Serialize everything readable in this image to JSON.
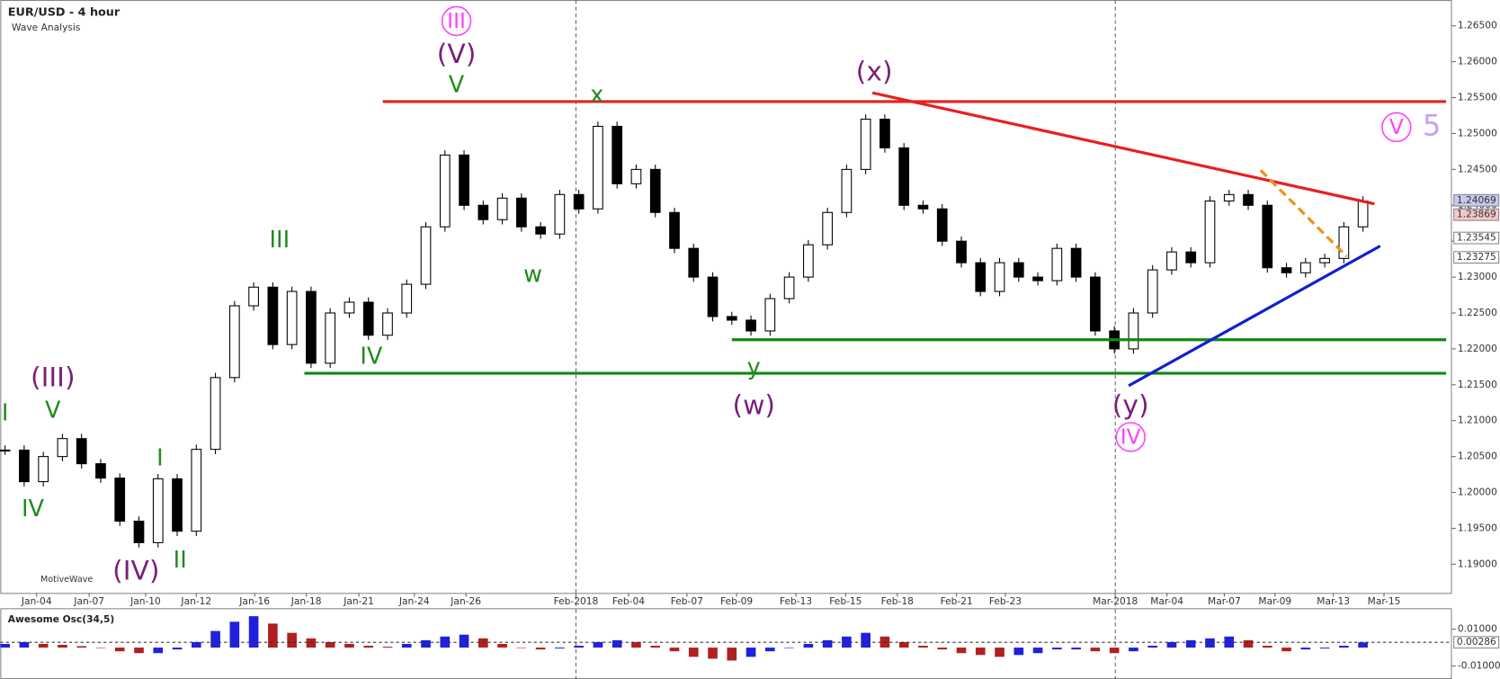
{
  "title": "EUR/USD - 4 hour",
  "subtitle": "Wave Analysis",
  "watermark": "MotiveWave",
  "chart_data": {
    "type": "candlestick",
    "close": [
      1.2059,
      1.2015,
      1.205,
      1.2075,
      1.204,
      1.202,
      1.196,
      1.193,
      1.2019,
      1.1946,
      1.206,
      1.216,
      1.226,
      1.2286,
      1.2206,
      1.228,
      1.218,
      1.225,
      1.2265,
      1.2219,
      1.225,
      1.229,
      1.237,
      1.247,
      1.24,
      1.238,
      1.241,
      1.237,
      1.236,
      1.2415,
      1.2395,
      1.251,
      1.243,
      1.245,
      1.239,
      1.234,
      1.23,
      1.2245,
      1.224,
      1.2225,
      1.227,
      1.23,
      1.2345,
      1.239,
      1.245,
      1.252,
      1.248,
      1.24,
      1.2395,
      1.235,
      1.232,
      1.228,
      1.232,
      1.23,
      1.2295,
      1.234,
      1.23,
      1.2225,
      1.22,
      1.225,
      1.231,
      1.2335,
      1.232,
      1.2406,
      1.2415,
      1.24,
      1.2313,
      1.2306,
      1.232,
      1.2326,
      1.237,
      1.2406
    ],
    "up_color": "#ffffff",
    "down_color": "#000000",
    "xlim": [
      -0.25,
      75.65
    ],
    "ylim": [
      1.186,
      1.2686
    ],
    "yticks": [
      {
        "value": 1.19,
        "label": "1.19000"
      },
      {
        "value": 1.195,
        "label": "1.19500"
      },
      {
        "value": 1.2,
        "label": "1.20000"
      },
      {
        "value": 1.205,
        "label": "1.20500"
      },
      {
        "value": 1.21,
        "label": "1.21000"
      },
      {
        "value": 1.215,
        "label": "1.21500"
      },
      {
        "value": 1.22,
        "label": "1.22000"
      },
      {
        "value": 1.225,
        "label": "1.22500"
      },
      {
        "value": 1.23,
        "label": "1.23000"
      },
      {
        "value": 1.235,
        "label": "1.23500"
      },
      {
        "value": 1.24,
        "label": "1.24000"
      },
      {
        "value": 1.245,
        "label": "1.24500"
      },
      {
        "value": 1.25,
        "label": "1.25000"
      },
      {
        "value": 1.255,
        "label": "1.25500"
      },
      {
        "value": 1.26,
        "label": "1.26000"
      },
      {
        "value": 1.265,
        "label": "1.26500"
      }
    ],
    "xticks": [
      {
        "value": 1.65,
        "label": "Jan-04"
      },
      {
        "value": 4.4,
        "label": "Jan-07"
      },
      {
        "value": 7.35,
        "label": "Jan-10"
      },
      {
        "value": 10,
        "label": "Jan-12"
      },
      {
        "value": 13.05,
        "label": "Jan-16"
      },
      {
        "value": 15.75,
        "label": "Jan-18"
      },
      {
        "value": 18.5,
        "label": "Jan-21"
      },
      {
        "value": 21.4,
        "label": "Jan-24"
      },
      {
        "value": 24.1,
        "label": "Jan-26"
      },
      {
        "value": 29.85,
        "label": "Feb-2018"
      },
      {
        "value": 32.6,
        "label": "Feb-04"
      },
      {
        "value": 35.65,
        "label": "Feb-07"
      },
      {
        "value": 38.25,
        "label": "Feb-09"
      },
      {
        "value": 41.35,
        "label": "Feb-13"
      },
      {
        "value": 43.95,
        "label": "Feb-15"
      },
      {
        "value": 46.65,
        "label": "Feb-18"
      },
      {
        "value": 49.75,
        "label": "Feb-21"
      },
      {
        "value": 52.3,
        "label": "Feb-23"
      },
      {
        "value": 58.05,
        "label": "Mar-2018"
      },
      {
        "value": 60.75,
        "label": "Mar-04"
      },
      {
        "value": 63.75,
        "label": "Mar-07"
      },
      {
        "value": 66.4,
        "label": "Mar-09"
      },
      {
        "value": 69.45,
        "label": "Mar-13"
      },
      {
        "value": 72.1,
        "label": "Mar-15"
      }
    ],
    "separators": [
      9,
      18
    ],
    "lines": [
      {
        "from": [
          19.75,
          1.25445
        ],
        "to": [
          75.35,
          1.25445
        ],
        "color": "#e82020",
        "width": 3
      },
      {
        "from": [
          38,
          1.22127
        ],
        "to": [
          75.35,
          1.22127
        ],
        "color": "#108a10",
        "width": 3
      },
      {
        "from": [
          15.65,
          1.2166
        ],
        "to": [
          75.35,
          1.2166
        ],
        "color": "#108a10",
        "width": 3
      },
      {
        "from": [
          45.35,
          1.25567
        ],
        "to": [
          71.6,
          1.2402
        ],
        "color": "#e82020",
        "width": 3
      },
      {
        "from": [
          58.75,
          1.21487
        ],
        "to": [
          71.9,
          1.23433
        ],
        "color": "#1020d0",
        "width": 3
      },
      {
        "from": [
          65.65,
          1.24487
        ],
        "to": [
          70.15,
          1.23287
        ],
        "color": "#f39019",
        "width": 3,
        "dash": true
      }
    ],
    "price_markers": [
      {
        "value": 1.24069,
        "label": "1.24069",
        "color": "#c8c8f0"
      },
      {
        "value": 1.23869,
        "label": "1.23869",
        "color": "#f4c8c8"
      },
      {
        "value": 1.23545,
        "label": "1.23545",
        "color": "#ffffff"
      },
      {
        "value": 1.23275,
        "label": "1.23275",
        "color": "#ffffff"
      }
    ],
    "annotations": [
      "III",
      "(V)",
      "V",
      "x",
      "w",
      "III",
      "IV",
      "(x)",
      "y",
      "(w)",
      "(y)",
      "IV",
      "V",
      "5",
      "(III)",
      "V",
      "I",
      "IV",
      "I",
      "(IV)",
      "II"
    ]
  },
  "oscillator": {
    "title": "Awesome Osc(34,5)",
    "up_color": "#2020e0",
    "down_color": "#b02020",
    "values": [
      0.002,
      0.003,
      0.002,
      0.0015,
      0.0008,
      0.0,
      -0.002,
      -0.003,
      -0.003,
      -0.001,
      0.003,
      0.009,
      0.014,
      0.017,
      0.013,
      0.008,
      0.005,
      0.003,
      0.002,
      0.001,
      0.0005,
      0.002,
      0.004,
      0.006,
      0.007,
      0.005,
      0.002,
      0.0,
      -0.001,
      -0.0005,
      0.001,
      0.003,
      0.004,
      0.003,
      0.001,
      -0.002,
      -0.005,
      -0.006,
      -0.007,
      -0.005,
      -0.002,
      0.0,
      0.002,
      0.004,
      0.006,
      0.008,
      0.006,
      0.003,
      0.001,
      -0.001,
      -0.003,
      -0.004,
      -0.005,
      -0.004,
      -0.003,
      -0.001,
      -0.001,
      -0.002,
      -0.003,
      -0.002,
      0.001,
      0.003,
      0.004,
      0.005,
      0.006,
      0.004,
      0.001,
      -0.002,
      -0.001,
      -0.0005,
      0.001,
      0.00286
    ],
    "ylim": [
      -0.017,
      0.0208
    ],
    "yticks": [
      {
        "value": 0.01,
        "label": "0.01000"
      },
      {
        "value": -0.01,
        "label": "-0.01000"
      }
    ],
    "current": {
      "value": 0.00286,
      "label": "0.00286"
    }
  }
}
